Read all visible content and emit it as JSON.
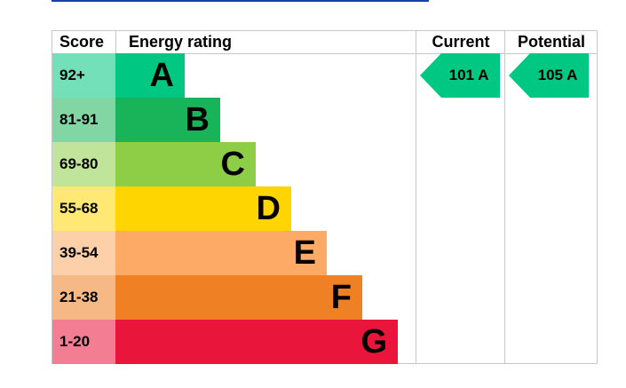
{
  "chart_data": {
    "type": "table",
    "headers": {
      "score": "Score",
      "rating": "Energy rating",
      "current": "Current",
      "potential": "Potential"
    },
    "bands": [
      {
        "score": "92+",
        "letter": "A",
        "color": "#00c781"
      },
      {
        "score": "81-91",
        "letter": "B",
        "color": "#19b459"
      },
      {
        "score": "69-80",
        "letter": "C",
        "color": "#8dce46"
      },
      {
        "score": "55-68",
        "letter": "D",
        "color": "#ffd500"
      },
      {
        "score": "39-54",
        "letter": "E",
        "color": "#fcaa65"
      },
      {
        "score": "21-38",
        "letter": "F",
        "color": "#ef8023"
      },
      {
        "score": "1-20",
        "letter": "G",
        "color": "#e9153b"
      }
    ],
    "current": {
      "label": "101 A",
      "value": 101,
      "band": "A",
      "color": "#00c781"
    },
    "potential": {
      "label": "105 A",
      "value": 105,
      "band": "A",
      "color": "#00c781"
    }
  }
}
